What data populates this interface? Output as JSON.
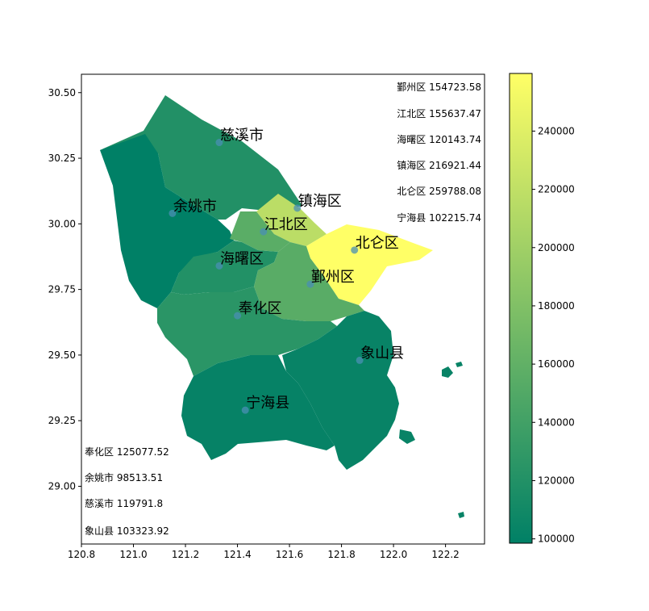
{
  "chart_data": {
    "type": "choropleth",
    "title": "",
    "xlabel": "",
    "ylabel": "",
    "xlim": [
      120.8,
      122.35
    ],
    "ylim": [
      28.78,
      30.57
    ],
    "x_ticks": [
      120.8,
      121.0,
      121.2,
      121.4,
      121.6,
      121.8,
      122.0,
      122.2
    ],
    "x_tick_labels": [
      "120.8",
      "121.0",
      "121.2",
      "121.4",
      "121.6",
      "121.8",
      "122.0",
      "122.2"
    ],
    "y_ticks": [
      29.0,
      29.25,
      29.5,
      29.75,
      30.0,
      30.25,
      30.5
    ],
    "y_tick_labels": [
      "29.00",
      "29.25",
      "29.50",
      "29.75",
      "30.00",
      "30.25",
      "30.50"
    ],
    "colorbar": {
      "min": 98513.51,
      "max": 259788.08,
      "colormap": "summer",
      "ticks": [
        100000,
        120000,
        140000,
        160000,
        180000,
        200000,
        220000,
        240000
      ],
      "tick_labels": [
        "100000",
        "120000",
        "140000",
        "160000",
        "180000",
        "200000",
        "220000",
        "240000"
      ]
    },
    "regions": [
      {
        "name": "慈溪市",
        "value": 119791.8,
        "lon": 121.33,
        "lat": 30.31,
        "value_text": "慈溪市 119791.8"
      },
      {
        "name": "镇海区",
        "value": 216921.44,
        "lon": 121.63,
        "lat": 30.06,
        "value_text": "镇海区 216921.44"
      },
      {
        "name": "余姚市",
        "value": 98513.51,
        "lon": 121.15,
        "lat": 30.04,
        "value_text": "余姚市 98513.51"
      },
      {
        "name": "江北区",
        "value": 155637.47,
        "lon": 121.5,
        "lat": 29.97,
        "value_text": "江北区 155637.47"
      },
      {
        "name": "北仑区",
        "value": 259788.08,
        "lon": 121.85,
        "lat": 29.9,
        "value_text": "北仑区 259788.08"
      },
      {
        "name": "海曙区",
        "value": 120143.74,
        "lon": 121.33,
        "lat": 29.84,
        "value_text": "海曙区 120143.74"
      },
      {
        "name": "鄞州区",
        "value": 154723.58,
        "lon": 121.68,
        "lat": 29.77,
        "value_text": "鄞州区 154723.58"
      },
      {
        "name": "奉化区",
        "value": 125077.52,
        "lon": 121.4,
        "lat": 29.65,
        "value_text": "奉化区 125077.52"
      },
      {
        "name": "象山县",
        "value": 103323.92,
        "lon": 121.87,
        "lat": 29.48,
        "value_text": "象山县 103323.92"
      },
      {
        "name": "宁海县",
        "value": 102215.74,
        "lon": 121.43,
        "lat": 29.29,
        "value_text": "宁海县 102215.74"
      }
    ],
    "value_list_top_right": [
      "鄞州区 154723.58",
      "江北区 155637.47",
      "海曙区 120143.74",
      "镇海区 216921.44",
      "北仑区 259788.08",
      "宁海县 102215.74"
    ],
    "value_list_bottom_left": [
      "奉化区 125077.52",
      "余姚市 98513.51",
      "慈溪市 119791.8",
      "象山县 103323.92"
    ]
  }
}
